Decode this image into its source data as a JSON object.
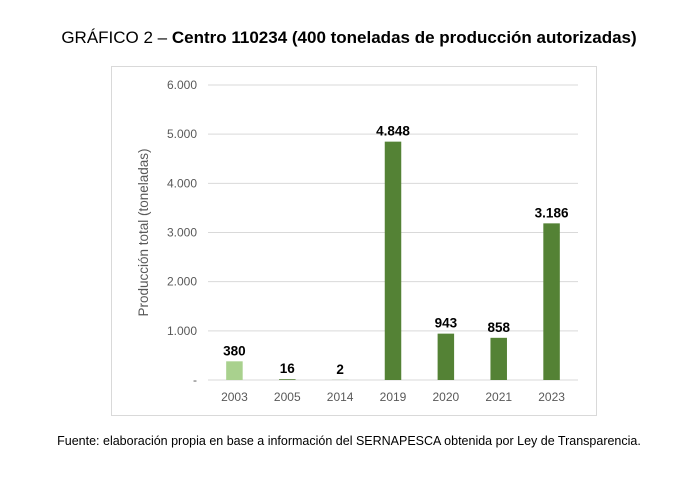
{
  "chart_data": {
    "type": "bar",
    "title_prefix": "GRÁFICO 2 –",
    "title": "Centro 110234 (400 toneladas de producción autorizadas)",
    "ylabel": "Producción total (toneladas)",
    "xlabel": "",
    "categories": [
      "2003",
      "2005",
      "2014",
      "2019",
      "2020",
      "2021",
      "2023"
    ],
    "values": [
      380,
      16,
      2,
      4848,
      943,
      858,
      3186
    ],
    "data_labels": [
      "380",
      "16",
      "2",
      "4.848",
      "943",
      "858",
      "3.186"
    ],
    "bar_colors": [
      "#a9d18e",
      "#548235",
      "#548235",
      "#548235",
      "#548235",
      "#548235",
      "#548235"
    ],
    "ylim": [
      0,
      6000
    ],
    "yticks": [
      0,
      1000,
      2000,
      3000,
      4000,
      5000,
      6000
    ],
    "ytick_labels": [
      "-",
      "1.000",
      "2.000",
      "3.000",
      "4.000",
      "5.000",
      "6.000"
    ],
    "grid": true,
    "legend": "none",
    "source": "Fuente: elaboración propia en base a información del SERNAPESCA obtenida por Ley de Transparencia."
  }
}
